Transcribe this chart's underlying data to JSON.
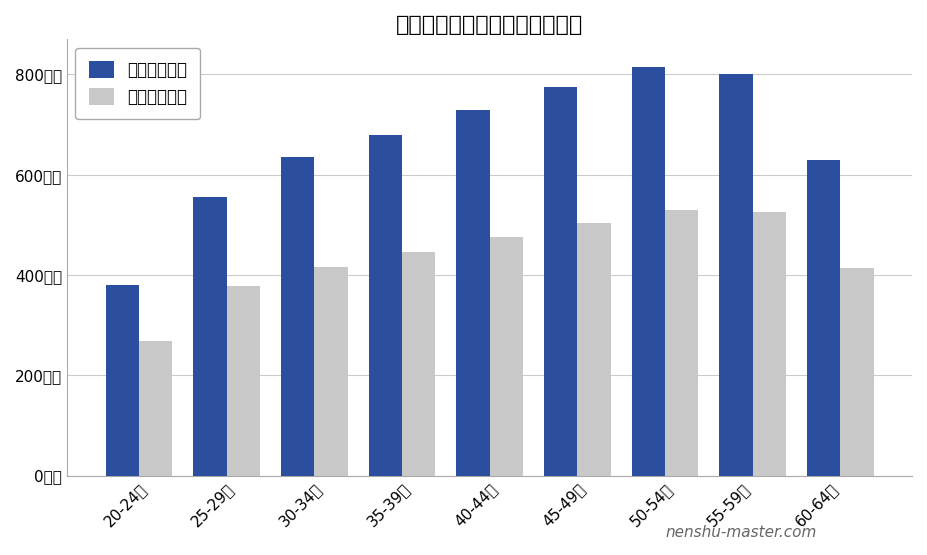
{
  "title": "ナラサキ産業の年齢別平均年収",
  "categories": [
    "20-24歳",
    "25-29歳",
    "30-34歳",
    "35-39歳",
    "40-44歳",
    "45-49歳",
    "50-54歳",
    "55-59歳",
    "60-64歳"
  ],
  "assumed_avg": [
    380,
    555,
    635,
    680,
    730,
    775,
    815,
    800,
    630
  ],
  "national_avg": [
    268,
    378,
    415,
    445,
    475,
    503,
    530,
    525,
    413
  ],
  "bar_color_assumed": "#2b4f9e",
  "bar_color_national": "#c8c8c8",
  "legend_labels": [
    "想定平均年収",
    "全国平均年収"
  ],
  "ytick_labels": [
    "0万円",
    "200万円",
    "400万円",
    "600万円",
    "800万円"
  ],
  "ytick_values": [
    0,
    200,
    400,
    600,
    800
  ],
  "ylim": [
    0,
    870
  ],
  "watermark": "nenshu-master.com",
  "background_color": "#ffffff",
  "title_fontsize": 16,
  "tick_fontsize": 11,
  "legend_fontsize": 12,
  "watermark_fontsize": 11
}
